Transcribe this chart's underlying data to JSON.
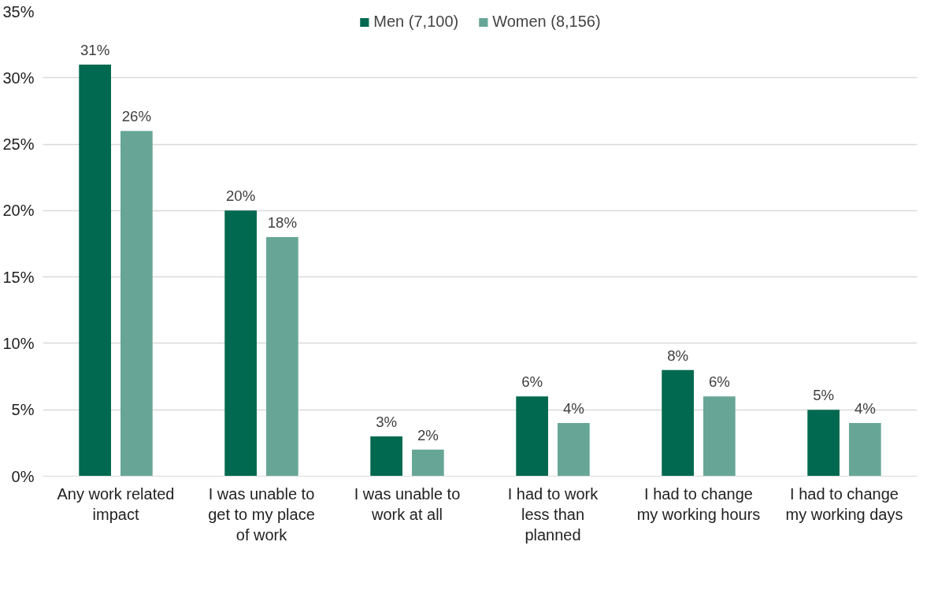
{
  "chart_data": {
    "type": "bar",
    "categories": [
      "Any work related impact",
      "I was unable to get to my place of work",
      "I was unable to work at all",
      "I had to work less than planned",
      "I had to change my working hours",
      "I had to change my working days"
    ],
    "series": [
      {
        "name": "Men (7,100)",
        "color": "#00694f",
        "values": [
          31,
          20,
          3,
          6,
          8,
          5
        ],
        "value_labels": [
          "31%",
          "20%",
          "3%",
          "6%",
          "8%",
          "5%"
        ]
      },
      {
        "name": "Women (8,156)",
        "color": "#67a697",
        "values": [
          26,
          18,
          2,
          4,
          6,
          4
        ],
        "value_labels": [
          "26%",
          "18%",
          "2%",
          "4%",
          "6%",
          "4%"
        ]
      }
    ],
    "ylim": [
      0,
      35
    ],
    "yticks": [
      {
        "value": 0,
        "label": "0%"
      },
      {
        "value": 5,
        "label": "5%"
      },
      {
        "value": 10,
        "label": "10%"
      },
      {
        "value": 15,
        "label": "15%"
      },
      {
        "value": 20,
        "label": "20%"
      },
      {
        "value": 25,
        "label": "25%"
      },
      {
        "value": 30,
        "label": "30%"
      },
      {
        "value": 35,
        "label": "35%"
      }
    ],
    "grid": "y",
    "legend": "top"
  }
}
